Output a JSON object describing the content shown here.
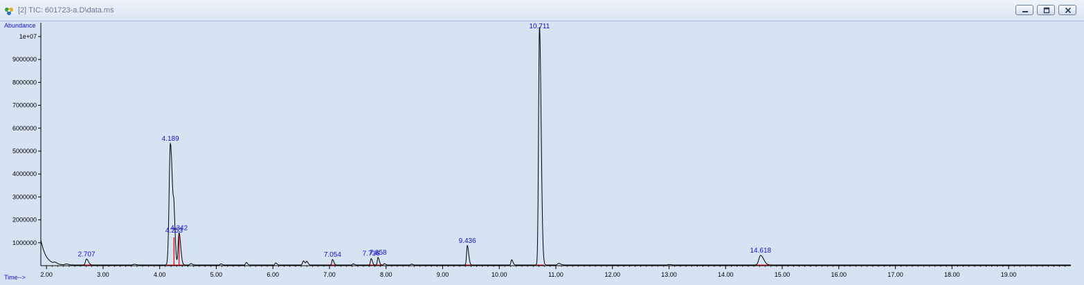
{
  "window": {
    "title": "[2] TIC: 601723-a.D\\data.ms",
    "icon": "chromatogram-app-icon"
  },
  "chart_data": {
    "type": "line",
    "ylabel": "Abundance",
    "xlabel": "Time-->",
    "xlim": [
      1.9,
      20.1
    ],
    "ylim": [
      0,
      10600000
    ],
    "x_ticks": [
      2.0,
      3.0,
      4.0,
      5.0,
      6.0,
      7.0,
      8.0,
      9.0,
      10.0,
      11.0,
      12.0,
      13.0,
      14.0,
      15.0,
      16.0,
      17.0,
      18.0,
      19.0
    ],
    "x_tick_labels": [
      "2.00",
      "3.00",
      "4.00",
      "5.00",
      "6.00",
      "7.00",
      "8.00",
      "9.00",
      "10.00",
      "11.00",
      "12.00",
      "13.00",
      "14.00",
      "15.00",
      "16.00",
      "17.00",
      "18.00",
      "19.00"
    ],
    "y_ticks": [
      1000000,
      2000000,
      3000000,
      4000000,
      5000000,
      6000000,
      7000000,
      8000000,
      9000000,
      10000000
    ],
    "y_tick_labels": [
      "1000000",
      "2000000",
      "3000000",
      "4000000",
      "5000000",
      "6000000",
      "7000000",
      "8000000",
      "9000000",
      "1e+07"
    ],
    "grid": false,
    "baseline": 30000,
    "peaks": [
      {
        "rt": 2.707,
        "label": "2.707",
        "height": 260000,
        "width": 0.018
      },
      {
        "rt": 4.189,
        "label": "4.189",
        "height": 5300000,
        "width": 0.022
      },
      {
        "rt": 4.253,
        "label": "4.253",
        "height": 1300000,
        "width": 0.012
      },
      {
        "rt": 4.342,
        "label": "4.342",
        "height": 1400000,
        "width": 0.016
      },
      {
        "rt": 7.054,
        "label": "7.054",
        "height": 240000,
        "width": 0.012
      },
      {
        "rt": 7.736,
        "label": "7.736",
        "height": 280000,
        "width": 0.012
      },
      {
        "rt": 7.858,
        "label": "7.858",
        "height": 330000,
        "width": 0.012
      },
      {
        "rt": 9.436,
        "label": "9.436",
        "height": 850000,
        "width": 0.013
      },
      {
        "rt": 10.711,
        "label": "10.711",
        "height": 10400000,
        "width": 0.016
      },
      {
        "rt": 14.618,
        "label": "14.618",
        "height": 420000,
        "width": 0.03
      }
    ],
    "minor_peaks": [
      {
        "rt": 2.15,
        "height": 60000,
        "width": 0.02
      },
      {
        "rt": 2.35,
        "height": 40000,
        "width": 0.02
      },
      {
        "rt": 3.55,
        "height": 30000,
        "width": 0.02
      },
      {
        "rt": 4.55,
        "height": 60000,
        "width": 0.015
      },
      {
        "rt": 5.08,
        "height": 50000,
        "width": 0.012
      },
      {
        "rt": 5.53,
        "height": 110000,
        "width": 0.012
      },
      {
        "rt": 6.05,
        "height": 90000,
        "width": 0.012
      },
      {
        "rt": 6.54,
        "height": 180000,
        "width": 0.015
      },
      {
        "rt": 6.6,
        "height": 150000,
        "width": 0.012
      },
      {
        "rt": 7.42,
        "height": 50000,
        "width": 0.012
      },
      {
        "rt": 7.97,
        "height": 60000,
        "width": 0.012
      },
      {
        "rt": 8.45,
        "height": 40000,
        "width": 0.012
      },
      {
        "rt": 10.22,
        "height": 230000,
        "width": 0.012
      },
      {
        "rt": 11.05,
        "height": 70000,
        "width": 0.02
      },
      {
        "rt": 13.0,
        "height": 20000,
        "width": 0.02
      }
    ],
    "line_color": "#000000",
    "integration_color": "#e60000",
    "label_color": "#1414c8"
  }
}
